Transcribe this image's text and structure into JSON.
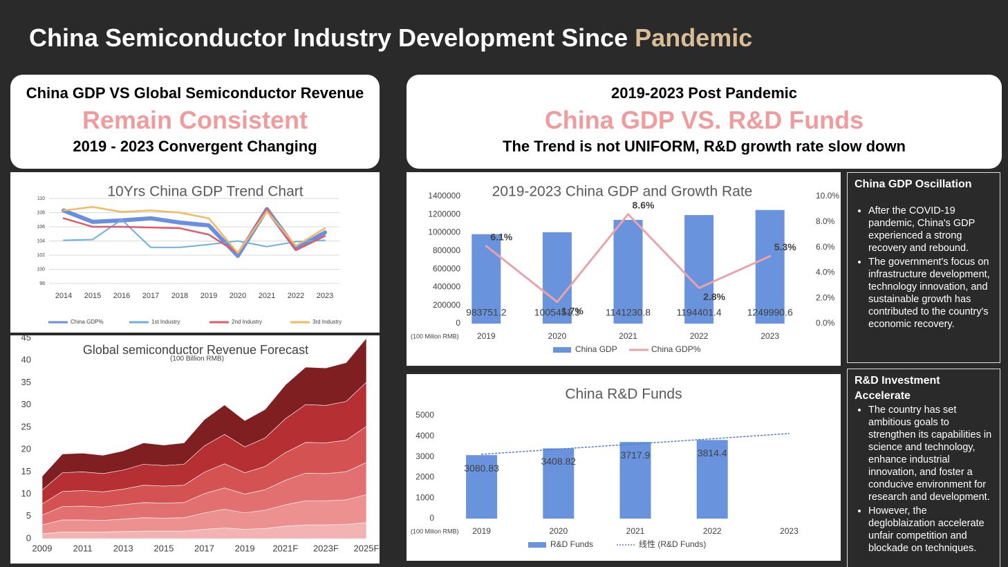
{
  "header": {
    "title": "China Semiconductor Industry Development Since",
    "highlight": "Pandemic"
  },
  "cards": [
    {
      "heading": "China GDP VS Global Semiconductor Revenue",
      "highlight": "Remain Consistent",
      "subheading": "2019 - 2023 Convergent Changing"
    },
    {
      "heading": "2019-2023 Post Pandemic",
      "highlight": "China GDP VS. R&D Funds",
      "subheading": "The Trend is not UNIFORM, R&D growth rate slow down"
    }
  ],
  "chart_data": [
    {
      "type": "line",
      "title": "10Yrs China GDP Trend Chart",
      "categories": [
        "2014",
        "2015",
        "2016",
        "2017",
        "2018",
        "2019",
        "2020",
        "2021",
        "2022",
        "2023"
      ],
      "series": [
        {
          "name": "China GDP%",
          "color": "#6a8fe0",
          "values": [
            108.3,
            106.7,
            106.9,
            107.2,
            106.6,
            106.2,
            101.9,
            108.5,
            102.9,
            105.2
          ]
        },
        {
          "name": "1st Industry",
          "color": "#6cb0e0",
          "values": [
            104.1,
            104.2,
            107.0,
            103.1,
            103.1,
            103.5,
            104.0,
            103.2,
            103.9,
            104.1
          ]
        },
        {
          "name": "2nd Industry",
          "color": "#e05a6a",
          "values": [
            107.2,
            106.0,
            106.0,
            105.9,
            105.8,
            104.9,
            102.3,
            108.5,
            102.7,
            104.7
          ]
        },
        {
          "name": "3rd Industry",
          "color": "#f5b860",
          "values": [
            108.3,
            108.8,
            108.1,
            108.3,
            108.0,
            107.2,
            102.3,
            108.2,
            103.3,
            105.8
          ]
        }
      ],
      "ylim": [
        98,
        110
      ],
      "yticks": [
        98,
        100,
        102,
        104,
        106,
        108,
        110
      ],
      "grid": true,
      "legend": "bottom"
    },
    {
      "type": "area",
      "stacked": true,
      "title": "Global semiconductor Revenue Forecast",
      "subtitle": "(100 Billion RMB)",
      "categories": [
        "2009",
        null,
        "2011",
        null,
        "2013",
        null,
        "2015",
        null,
        "2017",
        null,
        "2019",
        null,
        "2021F",
        null,
        "2023F",
        null,
        "2025F"
      ],
      "series": [
        {
          "color": "#f3b3b3",
          "values": [
            1.1,
            1.5,
            1.5,
            1.5,
            1.6,
            1.7,
            1.7,
            1.7,
            2.1,
            2.4,
            2.1,
            2.3,
            2.8,
            3.1,
            3.1,
            3.2,
            3.6
          ]
        },
        {
          "color": "#ec9090",
          "values": [
            2.0,
            2.7,
            2.7,
            2.6,
            2.8,
            3.0,
            2.9,
            3.0,
            3.7,
            4.2,
            3.7,
            4.1,
            4.8,
            5.4,
            5.4,
            5.5,
            6.3
          ]
        },
        {
          "color": "#e27070",
          "values": [
            2.2,
            3.0,
            3.1,
            3.0,
            3.2,
            3.4,
            3.4,
            3.4,
            4.3,
            4.8,
            4.2,
            4.6,
            5.5,
            6.2,
            6.1,
            6.3,
            7.2
          ]
        },
        {
          "color": "#d45252",
          "values": [
            2.5,
            3.4,
            3.5,
            3.4,
            3.5,
            3.9,
            3.8,
            3.9,
            4.8,
            5.4,
            4.8,
            5.2,
            6.2,
            6.9,
            6.9,
            7.1,
            8.1
          ]
        },
        {
          "color": "#b52f33",
          "values": [
            3.1,
            4.2,
            4.2,
            4.1,
            4.3,
            4.7,
            4.6,
            4.7,
            5.9,
            6.6,
            5.8,
            6.4,
            7.6,
            8.5,
            8.4,
            8.7,
            9.9
          ]
        },
        {
          "color": "#7f1f22",
          "values": [
            3.1,
            4.2,
            4.2,
            4.1,
            4.3,
            4.8,
            4.6,
            4.8,
            5.9,
            6.6,
            5.9,
            6.4,
            7.6,
            8.4,
            8.4,
            8.7,
            9.9
          ]
        }
      ],
      "ylim": [
        0,
        45
      ],
      "yticks": [
        0,
        5,
        10,
        15,
        20,
        25,
        30,
        35,
        40,
        45
      ],
      "grid": false
    },
    {
      "type": "combo",
      "title": "2019-2023 China GDP and Growth Rate",
      "axis_note": "(100 Milion RMB)",
      "categories": [
        "2019",
        "2020",
        "2021",
        "2022",
        "2023"
      ],
      "series": [
        {
          "name": "China GDP",
          "type": "bar",
          "color": "#6a93dd",
          "values": [
            983751.2,
            1005451.3,
            1141230.8,
            1194401.4,
            1249990.6
          ]
        },
        {
          "name": "China GDP%",
          "type": "line",
          "axis": "y2",
          "color": "#eaa3ab",
          "values": [
            6.1,
            1.7,
            8.6,
            2.8,
            5.3
          ],
          "value_labels": [
            "6.1%",
            "1.7%",
            "8.6%",
            "2.8%",
            "5.3%"
          ]
        }
      ],
      "ylim": [
        0,
        1400000
      ],
      "yticks": [
        0,
        200000,
        400000,
        600000,
        800000,
        1000000,
        1200000,
        1400000
      ],
      "y2lim": [
        0,
        10
      ],
      "y2ticks": [
        {
          "value": 0,
          "label": "0.0%"
        },
        {
          "value": 2,
          "label": "2.0%"
        },
        {
          "value": 4,
          "label": "4.0%"
        },
        {
          "value": 6,
          "label": "6.0%"
        },
        {
          "value": 8,
          "label": "8.0%"
        },
        {
          "value": 10,
          "label": "10.0%"
        }
      ],
      "grid": false,
      "legend": "bottom"
    },
    {
      "type": "bar",
      "title": "China R&D Funds",
      "axis_note": "(100 Milion RMB)",
      "categories": [
        "2019",
        "2020",
        "2021",
        "2022",
        "2023"
      ],
      "series": [
        {
          "name": "R&D Funds",
          "type": "bar",
          "color": "#6a93dd",
          "values": [
            3080.83,
            3408.82,
            3717.9,
            3814.4,
            null
          ]
        },
        {
          "name": "线性 (R&D Funds)",
          "type": "line",
          "style": "dotted",
          "color": "#4a7fd0",
          "values": [
            3120,
            3372,
            3624,
            3876,
            4128
          ]
        }
      ],
      "ylim": [
        0,
        5000
      ],
      "yticks": [
        0,
        1000,
        2000,
        3000,
        4000,
        5000
      ],
      "grid": false,
      "legend": "bottom"
    }
  ],
  "notes": [
    {
      "title": "China GDP Oscillation",
      "bullets": [
        "After the COVID-19 pandemic, China's GDP experienced a strong recovery and rebound.",
        "The government's focus on infrastructure development, technology innovation, and sustainable growth has contributed to the country's economic recovery."
      ]
    },
    {
      "title": "R&D Investment Accelerate",
      "bullets": [
        "The country has set ambitious goals to strengthen its capabilities in science and technology, enhance industrial innovation, and foster a conducive environment for research and development.",
        "However, the degloblaization accelerate unfair competition and blockade on techniques."
      ]
    }
  ]
}
